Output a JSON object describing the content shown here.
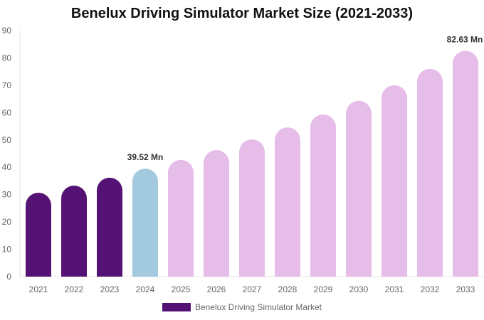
{
  "chart_data": {
    "type": "bar",
    "title": "Benelux Driving Simulator Market Size (2021-2033)",
    "categories": [
      "2021",
      "2022",
      "2023",
      "2024",
      "2025",
      "2026",
      "2027",
      "2028",
      "2029",
      "2030",
      "2031",
      "2032",
      "2033"
    ],
    "series": [
      {
        "name": "Benelux Driving Simulator Market",
        "values": [
          30.7,
          33.3,
          36.2,
          39.52,
          42.7,
          46.3,
          50.2,
          54.6,
          59.3,
          64.3,
          70.0,
          76.0,
          82.63
        ]
      }
    ],
    "data_labels": {
      "2024": "39.52 Mn",
      "2033": "82.63 Mn"
    },
    "ylim": [
      0,
      90
    ],
    "yticks": [
      0,
      10,
      20,
      30,
      40,
      50,
      60,
      70,
      80,
      90
    ],
    "grid": false,
    "legend": "bottom",
    "colors": {
      "historical": "#541274",
      "current": "#a3c9de",
      "forecast": "#e6bde9"
    },
    "color_groups": [
      "historical",
      "historical",
      "historical",
      "current",
      "forecast",
      "forecast",
      "forecast",
      "forecast",
      "forecast",
      "forecast",
      "forecast",
      "forecast",
      "forecast"
    ]
  }
}
